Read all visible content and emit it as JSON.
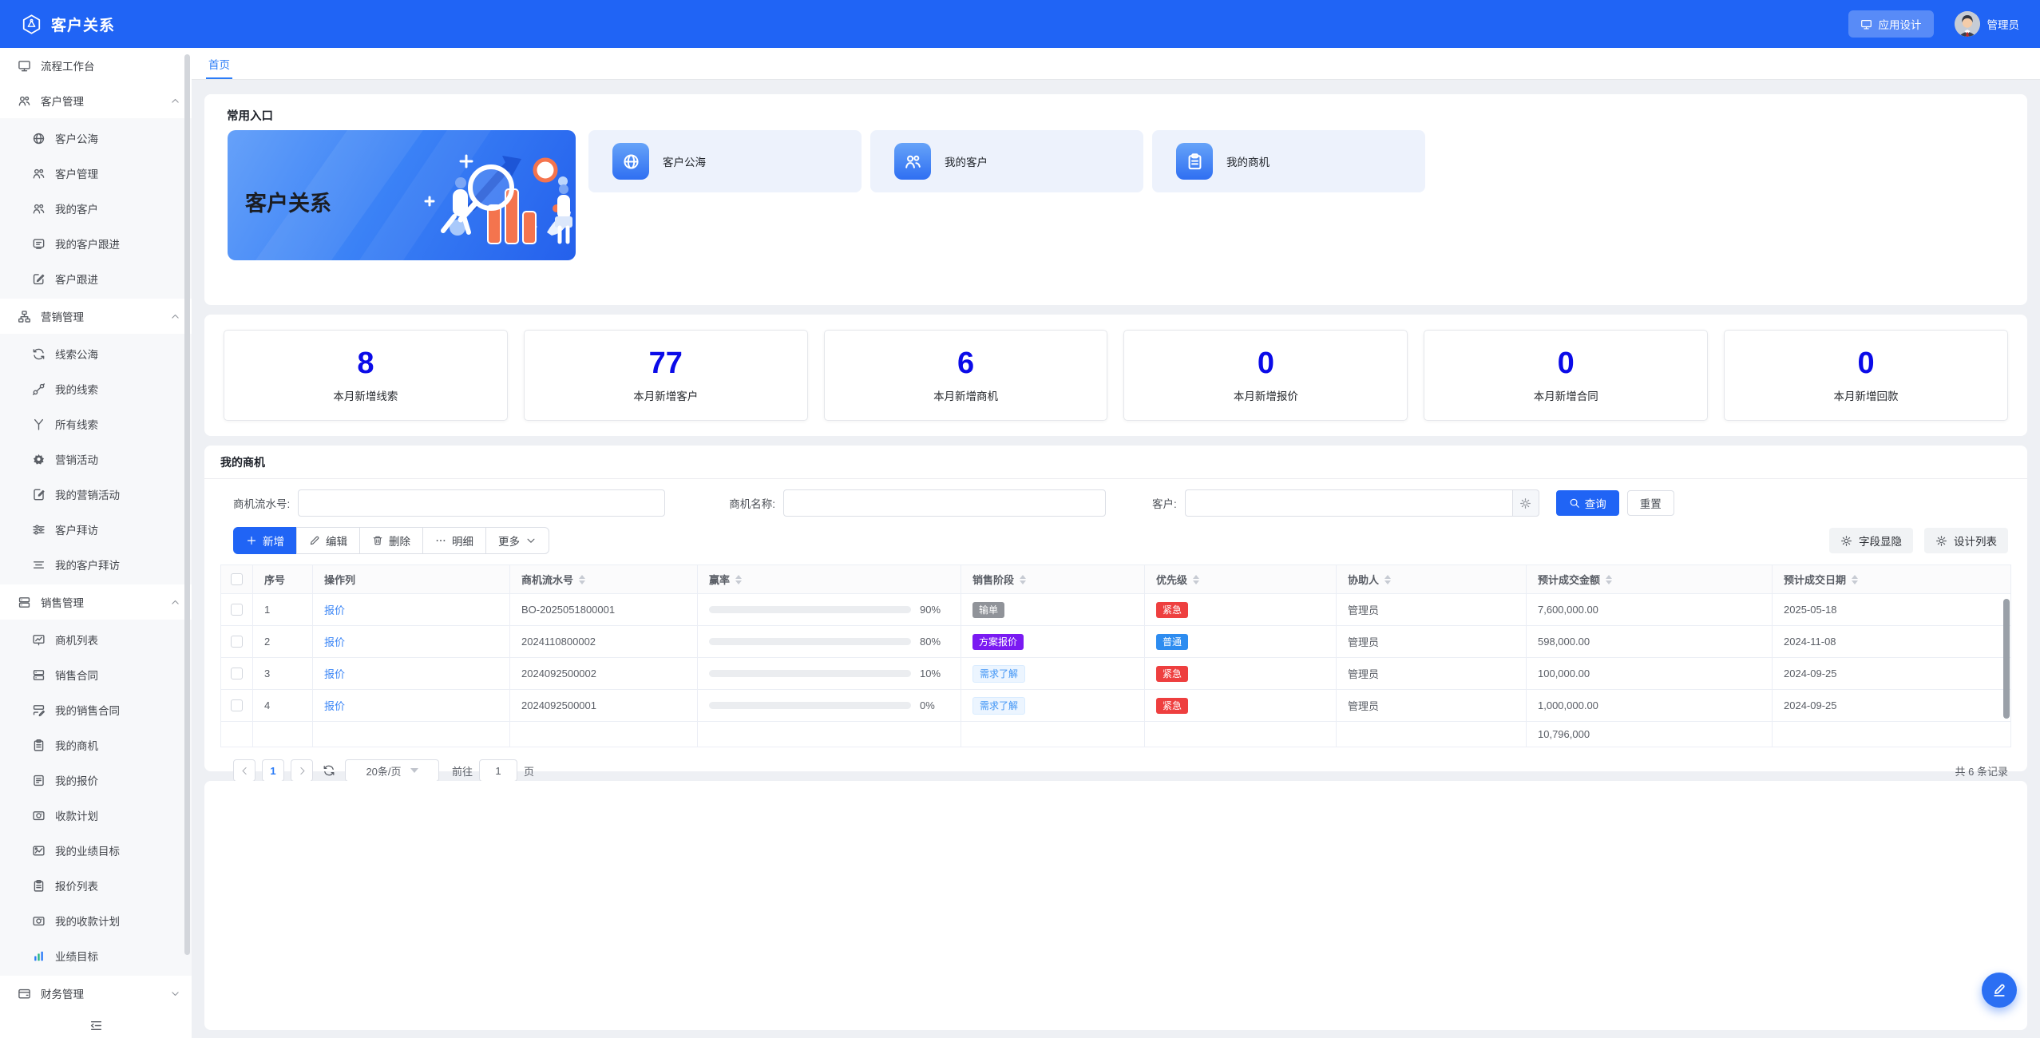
{
  "app": {
    "title": "客户关系",
    "design_button": "应用设计",
    "user": "管理员"
  },
  "tabs": {
    "home": "首页"
  },
  "sidebar": {
    "items": [
      {
        "label": "流程工作台",
        "icon": "monitor"
      },
      {
        "label": "客户管理",
        "icon": "users",
        "expanded": true,
        "children": [
          {
            "label": "客户公海",
            "icon": "globe"
          },
          {
            "label": "客户管理",
            "icon": "users"
          },
          {
            "label": "我的客户",
            "icon": "users"
          },
          {
            "label": "我的客户跟进",
            "icon": "chat"
          },
          {
            "label": "客户跟进",
            "icon": "edit"
          }
        ]
      },
      {
        "label": "营销管理",
        "icon": "org",
        "expanded": true,
        "children": [
          {
            "label": "线索公海",
            "icon": "refresh"
          },
          {
            "label": "我的线索",
            "icon": "plug"
          },
          {
            "label": "所有线索",
            "icon": "split"
          },
          {
            "label": "营销活动",
            "icon": "gearsolid"
          },
          {
            "label": "我的营销活动",
            "icon": "docpen"
          },
          {
            "label": "客户拜访",
            "icon": "sliders"
          },
          {
            "label": "我的客户拜访",
            "icon": "list3"
          }
        ]
      },
      {
        "label": "销售管理",
        "icon": "server",
        "expanded": true,
        "children": [
          {
            "label": "商机列表",
            "icon": "board"
          },
          {
            "label": "销售合同",
            "icon": "server"
          },
          {
            "label": "我的销售合同",
            "icon": "serverpen"
          },
          {
            "label": "我的商机",
            "icon": "clipboard"
          },
          {
            "label": "我的报价",
            "icon": "docbadge"
          },
          {
            "label": "收款计划",
            "icon": "camera"
          },
          {
            "label": "我的业绩目标",
            "icon": "photochart"
          },
          {
            "label": "报价列表",
            "icon": "clipboard"
          },
          {
            "label": "我的收款计划",
            "icon": "camera"
          },
          {
            "label": "业绩目标",
            "icon": "barscolor"
          }
        ]
      },
      {
        "label": "财务管理",
        "icon": "wallet",
        "expanded": false,
        "children": []
      }
    ]
  },
  "quick": {
    "title": "常用入口",
    "banner_title": "客户关系",
    "links": [
      {
        "label": "客户公海",
        "icon": "globe"
      },
      {
        "label": "我的客户",
        "icon": "users"
      },
      {
        "label": "我的商机",
        "icon": "clipboard"
      }
    ]
  },
  "stats": [
    {
      "value": "8",
      "label": "本月新增线索"
    },
    {
      "value": "77",
      "label": "本月新增客户"
    },
    {
      "value": "6",
      "label": "本月新增商机"
    },
    {
      "value": "0",
      "label": "本月新增报价"
    },
    {
      "value": "0",
      "label": "本月新增合同"
    },
    {
      "value": "0",
      "label": "本月新增回款"
    }
  ],
  "panel": {
    "title": "我的商机",
    "search": {
      "serial_label": "商机流水号:",
      "name_label": "商机名称:",
      "customer_label": "客户:",
      "search_btn": "查询",
      "reset_btn": "重置"
    },
    "toolbar": {
      "add": "新增",
      "edit": "编辑",
      "delete": "删除",
      "detail": "明细",
      "more": "更多",
      "field_toggle": "字段显隐",
      "design_list": "设计列表"
    },
    "table": {
      "columns": [
        {
          "label": "序号",
          "sortable": false
        },
        {
          "label": "操作列",
          "sortable": false
        },
        {
          "label": "商机流水号",
          "sortable": true
        },
        {
          "label": "赢率",
          "sortable": true
        },
        {
          "label": "销售阶段",
          "sortable": true
        },
        {
          "label": "优先级",
          "sortable": true
        },
        {
          "label": "协助人",
          "sortable": true
        },
        {
          "label": "预计成交金额",
          "sortable": true
        },
        {
          "label": "预计成交日期",
          "sortable": true
        }
      ],
      "rows": [
        {
          "index": "1",
          "action": "报价",
          "serial": "BO-2025051800001",
          "win_rate": 90,
          "stage": "输单",
          "stage_style": "gray",
          "priority": "紧急",
          "priority_style": "red",
          "assistant": "管理员",
          "amount": "7,600,000.00",
          "date": "2025-05-18"
        },
        {
          "index": "2",
          "action": "报价",
          "serial": "2024110800002",
          "win_rate": 80,
          "stage": "方案报价",
          "stage_style": "purple",
          "priority": "普通",
          "priority_style": "blue",
          "assistant": "管理员",
          "amount": "598,000.00",
          "date": "2024-11-08"
        },
        {
          "index": "3",
          "action": "报价",
          "serial": "2024092500002",
          "win_rate": 10,
          "stage": "需求了解",
          "stage_style": "lightblue",
          "priority": "紧急",
          "priority_style": "red",
          "assistant": "管理员",
          "amount": "100,000.00",
          "date": "2024-09-25"
        },
        {
          "index": "4",
          "action": "报价",
          "serial": "2024092500001",
          "win_rate": 0,
          "stage": "需求了解",
          "stage_style": "lightblue",
          "priority": "紧急",
          "priority_style": "red",
          "assistant": "管理员",
          "amount": "1,000,000.00",
          "date": "2024-09-25"
        }
      ],
      "total_amount": "10,796,000"
    },
    "pagination": {
      "page": "1",
      "page_size": "20条/页",
      "goto_label": "前往",
      "goto_value": "1",
      "page_unit": "页",
      "total_text": "共 6 条记录"
    }
  },
  "colors": {
    "primary": "#2064f5",
    "stat_value": "#0b0be8",
    "progress_fill": "#ed0b0b",
    "badge_red": "#ee3f3f",
    "badge_blue": "#2d8cf0",
    "badge_purple": "#7a1af2",
    "badge_gray": "#909399",
    "link": "#3c86f6"
  }
}
